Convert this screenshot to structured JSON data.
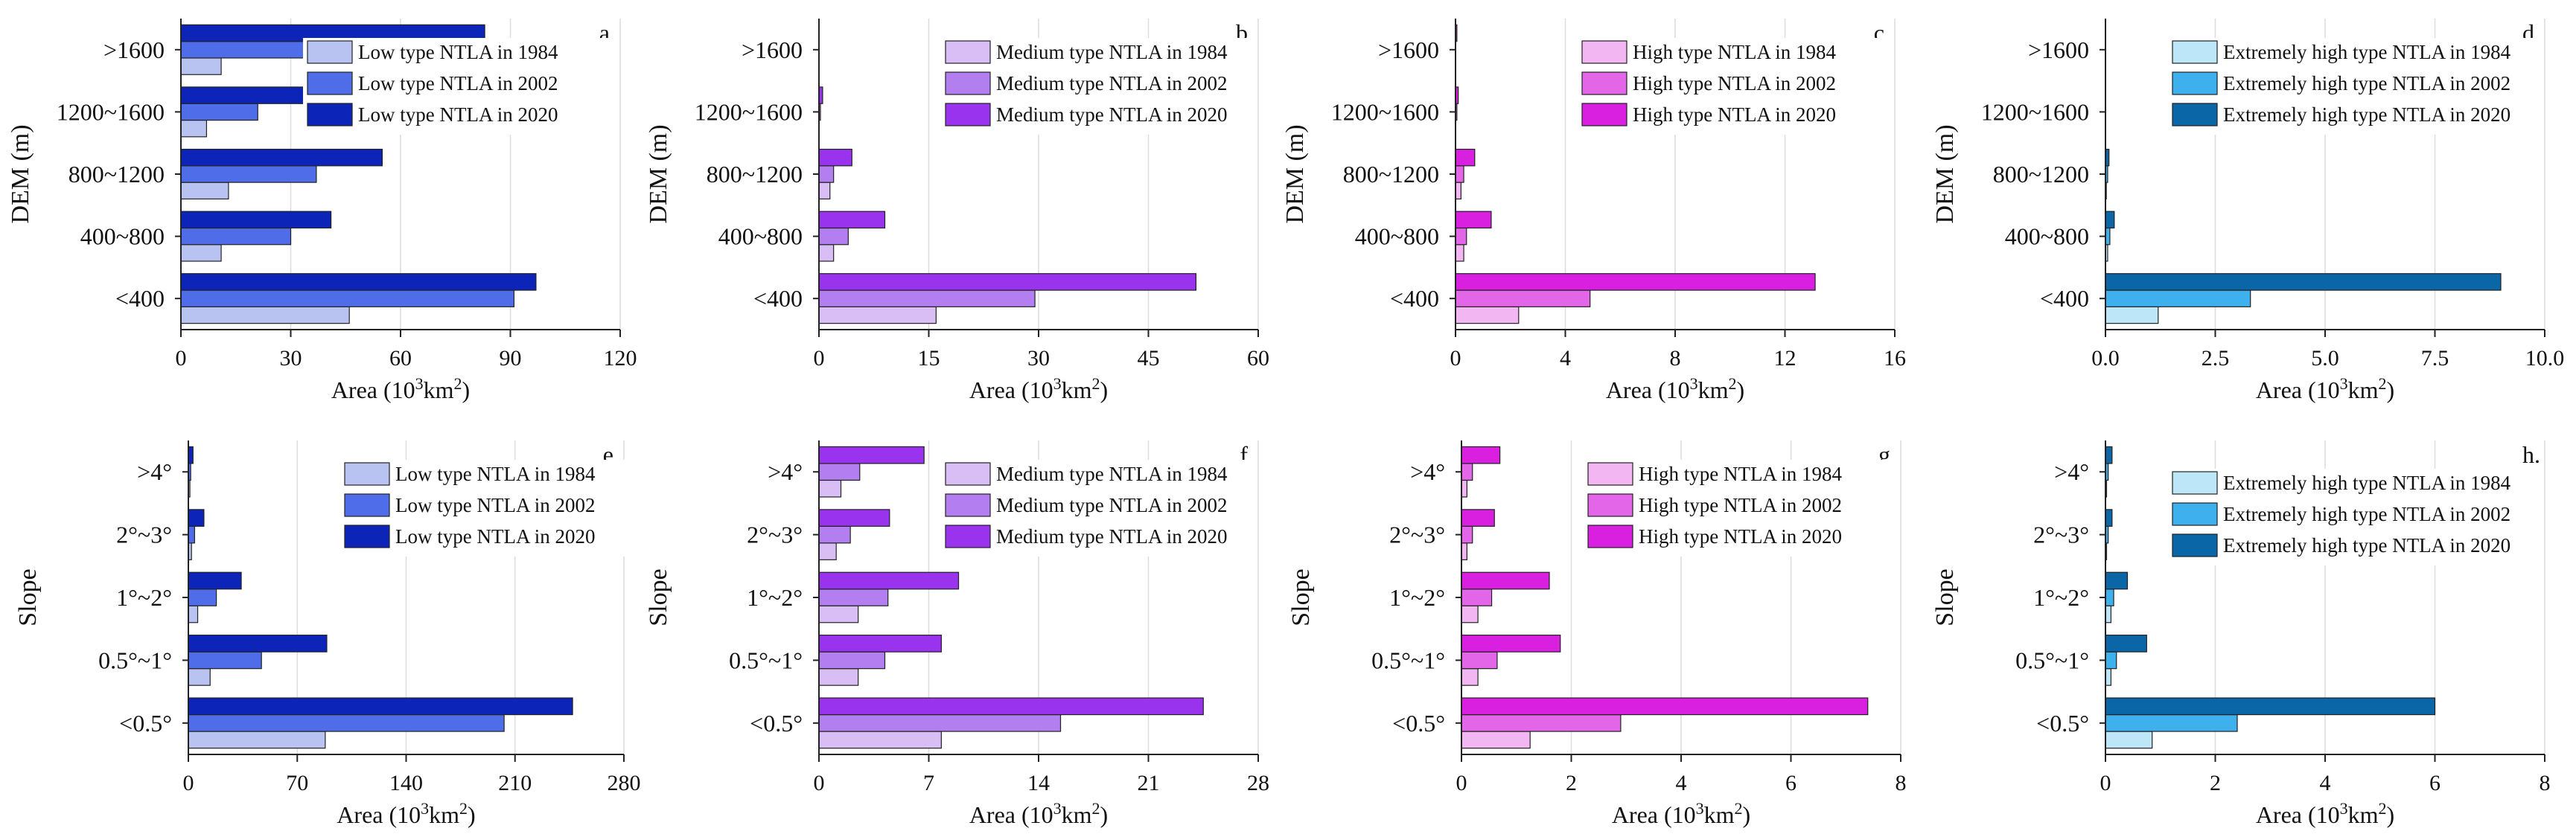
{
  "figure": {
    "ylabel_dem": "DEM (m)",
    "ylabel_slope": "Slope"
  },
  "series_colors": {
    "low": [
      "#b9c3f2",
      "#4f6de8",
      "#0c24b8"
    ],
    "medium": [
      "#d9bdf5",
      "#b27ef0",
      "#9933ee"
    ],
    "high": [
      "#f2b6f2",
      "#e366e8",
      "#d91fe0"
    ],
    "extreme": [
      "#bde6f8",
      "#3fb0ee",
      "#0b66a8"
    ]
  },
  "chart_data": [
    {
      "panel": "a.",
      "type": "bar",
      "orientation": "horizontal",
      "group": "DEM",
      "color_key": "low",
      "categories": [
        "<400",
        "400~800",
        "800~1200",
        "1200~1600",
        ">1600"
      ],
      "series": [
        {
          "name": "Low type NTLA in 1984",
          "values": [
            46,
            11,
            13,
            7,
            11
          ]
        },
        {
          "name": "Low type NTLA in 2002",
          "values": [
            91,
            30,
            37,
            21,
            41
          ]
        },
        {
          "name": "Low type NTLA in 2020",
          "values": [
            97,
            41,
            55,
            35,
            83
          ]
        }
      ],
      "xlim": [
        0,
        120
      ],
      "xticks": [
        "0",
        "30",
        "60",
        "90",
        "120"
      ],
      "xlabel": "Area (10",
      "xlabel_sup": "3",
      "xlabel_end": "km",
      "xlabel_sup2": "2",
      "xlabel_close": ")",
      "ylabel": "DEM (m)"
    },
    {
      "panel": "b.",
      "type": "bar",
      "orientation": "horizontal",
      "group": "DEM",
      "color_key": "medium",
      "categories": [
        "<400",
        "400~800",
        "800~1200",
        "1200~1600",
        ">1600"
      ],
      "series": [
        {
          "name": "Medium type NTLA in 1984",
          "values": [
            16,
            2,
            1.5,
            0,
            0
          ]
        },
        {
          "name": "Medium type NTLA in 2002",
          "values": [
            29.5,
            4,
            2,
            0.2,
            0
          ]
        },
        {
          "name": "Medium type NTLA in 2020",
          "values": [
            51.5,
            9,
            4.5,
            0.5,
            0
          ]
        }
      ],
      "xlim": [
        0,
        60
      ],
      "xticks": [
        "0",
        "15",
        "30",
        "45",
        "60"
      ],
      "xlabel": "Area (10",
      "xlabel_sup": "3",
      "xlabel_end": "km",
      "xlabel_sup2": "2",
      "xlabel_close": ")",
      "ylabel": "DEM (m)"
    },
    {
      "panel": "c.",
      "type": "bar",
      "orientation": "horizontal",
      "group": "DEM",
      "color_key": "high",
      "categories": [
        "<400",
        "400~800",
        "800~1200",
        "1200~1600",
        ">1600"
      ],
      "series": [
        {
          "name": "High type NTLA in 1984",
          "values": [
            2.3,
            0.3,
            0.2,
            0,
            0
          ]
        },
        {
          "name": "High type NTLA in 2002",
          "values": [
            4.9,
            0.4,
            0.3,
            0.05,
            0
          ]
        },
        {
          "name": "High type NTLA in 2020",
          "values": [
            13.1,
            1.3,
            0.7,
            0.1,
            0.05
          ]
        }
      ],
      "xlim": [
        0,
        16
      ],
      "xticks": [
        "0",
        "4",
        "8",
        "12",
        "16"
      ],
      "xlabel": "Area (10",
      "xlabel_sup": "3",
      "xlabel_end": "km",
      "xlabel_sup2": "2",
      "xlabel_close": ")",
      "ylabel": "DEM (m)"
    },
    {
      "panel": "d.",
      "type": "bar",
      "orientation": "horizontal",
      "group": "DEM",
      "color_key": "extreme",
      "categories": [
        "<400",
        "400~800",
        "800~1200",
        "1200~1600",
        ">1600"
      ],
      "series": [
        {
          "name": "Extremely high type NTLA in 1984",
          "values": [
            1.2,
            0.05,
            0.02,
            0,
            0
          ]
        },
        {
          "name": "Extremely high type NTLA in 2002",
          "values": [
            3.3,
            0.1,
            0.05,
            0,
            0
          ]
        },
        {
          "name": "Extremely high type NTLA in 2020",
          "values": [
            9.0,
            0.2,
            0.08,
            0,
            0
          ]
        }
      ],
      "xlim": [
        0,
        10
      ],
      "xticks": [
        "0.0",
        "2.5",
        "5.0",
        "7.5",
        "10.0"
      ],
      "xlabel": "Area (10",
      "xlabel_sup": "3",
      "xlabel_end": "km",
      "xlabel_sup2": "2",
      "xlabel_close": ")",
      "ylabel": "DEM (m)"
    },
    {
      "panel": "e.",
      "type": "bar",
      "orientation": "horizontal",
      "group": "Slope",
      "color_key": "low",
      "categories": [
        "<0.5°",
        "0.5°~1°",
        "1°~2°",
        "2°~3°",
        ">4°"
      ],
      "series": [
        {
          "name": "Low type NTLA in 1984",
          "values": [
            88,
            14,
            6,
            2,
            1
          ]
        },
        {
          "name": "Low type NTLA in 2002",
          "values": [
            203,
            47,
            18,
            4,
            1.5
          ]
        },
        {
          "name": "Low type NTLA in 2020",
          "values": [
            247,
            89,
            34,
            10,
            3
          ]
        }
      ],
      "xlim": [
        0,
        280
      ],
      "xticks": [
        "0",
        "70",
        "140",
        "210",
        "280"
      ],
      "xlabel": "Area (10",
      "xlabel_sup": "3",
      "xlabel_end": "km",
      "xlabel_sup2": "2",
      "xlabel_close": ")",
      "ylabel": "Slope"
    },
    {
      "panel": "f.",
      "type": "bar",
      "orientation": "horizontal",
      "group": "Slope",
      "color_key": "medium",
      "categories": [
        "<0.5°",
        "0.5°~1°",
        "1°~2°",
        "2°~3°",
        ">4°"
      ],
      "series": [
        {
          "name": "Medium type NTLA in 1984",
          "values": [
            7.8,
            2.5,
            2.5,
            1.1,
            1.4
          ]
        },
        {
          "name": "Medium type NTLA in 2002",
          "values": [
            15.4,
            4.2,
            4.4,
            2.0,
            2.6
          ]
        },
        {
          "name": "Medium type NTLA in 2020",
          "values": [
            24.5,
            7.8,
            8.9,
            4.5,
            6.7
          ]
        }
      ],
      "xlim": [
        0,
        28
      ],
      "xticks": [
        "0",
        "7",
        "14",
        "21",
        "28"
      ],
      "xlabel": "Area (10",
      "xlabel_sup": "3",
      "xlabel_end": "km",
      "xlabel_sup2": "2",
      "xlabel_close": ")",
      "ylabel": "Slope"
    },
    {
      "panel": "g.",
      "type": "bar",
      "orientation": "horizontal",
      "group": "Slope",
      "color_key": "high",
      "categories": [
        "<0.5°",
        "0.5°~1°",
        "1°~2°",
        "2°~3°",
        ">4°"
      ],
      "series": [
        {
          "name": "High type NTLA in 1984",
          "values": [
            1.25,
            0.3,
            0.3,
            0.1,
            0.1
          ]
        },
        {
          "name": "High type NTLA in 2002",
          "values": [
            2.9,
            0.65,
            0.55,
            0.2,
            0.2
          ]
        },
        {
          "name": "High type NTLA in 2020",
          "values": [
            7.4,
            1.8,
            1.6,
            0.6,
            0.7
          ]
        }
      ],
      "xlim": [
        0,
        8
      ],
      "xticks": [
        "0",
        "2",
        "4",
        "6",
        "8"
      ],
      "xlabel": "Area (10",
      "xlabel_sup": "3",
      "xlabel_end": "km",
      "xlabel_sup2": "2",
      "xlabel_close": ")",
      "ylabel": "Slope"
    },
    {
      "panel": "h.",
      "type": "bar",
      "orientation": "horizontal",
      "group": "Slope",
      "color_key": "extreme",
      "categories": [
        "<0.5°",
        "0.5°~1°",
        "1°~2°",
        "2°~3°",
        ">4°"
      ],
      "series": [
        {
          "name": "Extremely high type NTLA in 1984",
          "values": [
            0.85,
            0.1,
            0.1,
            0.02,
            0.02
          ]
        },
        {
          "name": "Extremely high type NTLA in 2002",
          "values": [
            2.4,
            0.2,
            0.15,
            0.05,
            0.05
          ]
        },
        {
          "name": "Extremely high type NTLA in 2020",
          "values": [
            6.0,
            0.75,
            0.4,
            0.12,
            0.12
          ]
        }
      ],
      "xlim": [
        0,
        8
      ],
      "xticks": [
        "0",
        "2",
        "4",
        "6",
        "8"
      ],
      "xlabel": "Area (10",
      "xlabel_sup": "3",
      "xlabel_end": "km",
      "xlabel_sup2": "2",
      "xlabel_close": ")",
      "ylabel": "Slope"
    }
  ]
}
